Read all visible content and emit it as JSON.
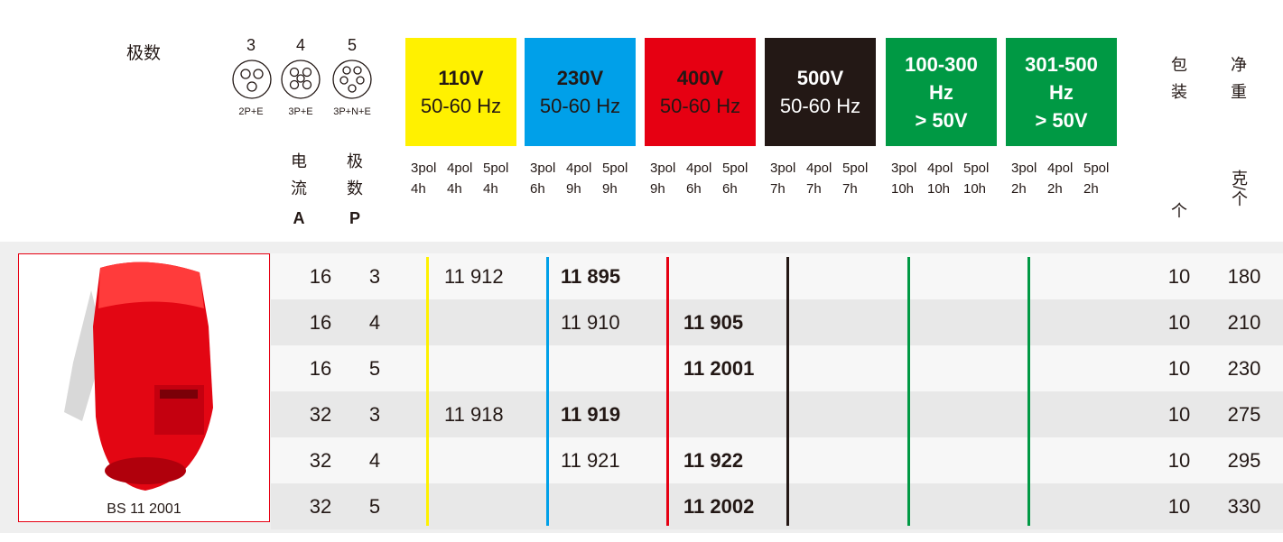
{
  "header": {
    "pole_label": "极数",
    "poles": [
      {
        "number": "3",
        "label": "2P+E"
      },
      {
        "number": "4",
        "label": "3P+E"
      },
      {
        "number": "5",
        "label": "3P+N+E"
      }
    ],
    "voltages": [
      {
        "lines": [
          "110V",
          "50-60 Hz"
        ],
        "pols": [
          "3pol",
          "4pol",
          "5pol"
        ],
        "hours": [
          "4h",
          "4h",
          "4h"
        ]
      },
      {
        "lines": [
          "230V",
          "50-60 Hz"
        ],
        "pols": [
          "3pol",
          "4pol",
          "5pol"
        ],
        "hours": [
          "6h",
          "9h",
          "9h"
        ]
      },
      {
        "lines": [
          "400V",
          "50-60 Hz"
        ],
        "pols": [
          "3pol",
          "4pol",
          "5pol"
        ],
        "hours": [
          "9h",
          "6h",
          "6h"
        ]
      },
      {
        "lines": [
          "500V",
          "50-60 Hz"
        ],
        "pols": [
          "3pol",
          "4pol",
          "5pol"
        ],
        "hours": [
          "7h",
          "7h",
          "7h"
        ]
      },
      {
        "lines": [
          "100-300",
          "Hz",
          "> 50V"
        ],
        "pols": [
          "3pol",
          "4pol",
          "5pol"
        ],
        "hours": [
          "10h",
          "10h",
          "10h"
        ]
      },
      {
        "lines": [
          "301-500",
          "Hz",
          "> 50V"
        ],
        "pols": [
          "3pol",
          "4pol",
          "5pol"
        ],
        "hours": [
          "2h",
          "2h",
          "2h"
        ]
      }
    ],
    "current": {
      "chars": [
        "电",
        "流"
      ],
      "unit": "A"
    },
    "pole": {
      "chars": [
        "极",
        "数"
      ],
      "unit": "P"
    },
    "pack": {
      "chars": [
        "包",
        "装"
      ],
      "unit": "个"
    },
    "weight": {
      "chars": [
        "净",
        "重"
      ],
      "unit": "克/个"
    }
  },
  "product": {
    "caption": "BS  11 2001"
  },
  "table": {
    "rows": [
      [
        16,
        3,
        "11 912",
        "11 895",
        null,
        null,
        null,
        null,
        10,
        180
      ],
      [
        16,
        4,
        null,
        "11 910",
        "11 905",
        null,
        null,
        null,
        10,
        210
      ],
      [
        16,
        5,
        null,
        null,
        "11 2001",
        null,
        null,
        null,
        10,
        230
      ],
      [
        32,
        3,
        "11 918",
        "11 919",
        null,
        null,
        null,
        null,
        10,
        275
      ],
      [
        32,
        4,
        null,
        "11 921",
        "11 922",
        null,
        null,
        null,
        10,
        295
      ],
      [
        32,
        5,
        null,
        null,
        "11 2002",
        null,
        null,
        null,
        10,
        330
      ]
    ]
  }
}
